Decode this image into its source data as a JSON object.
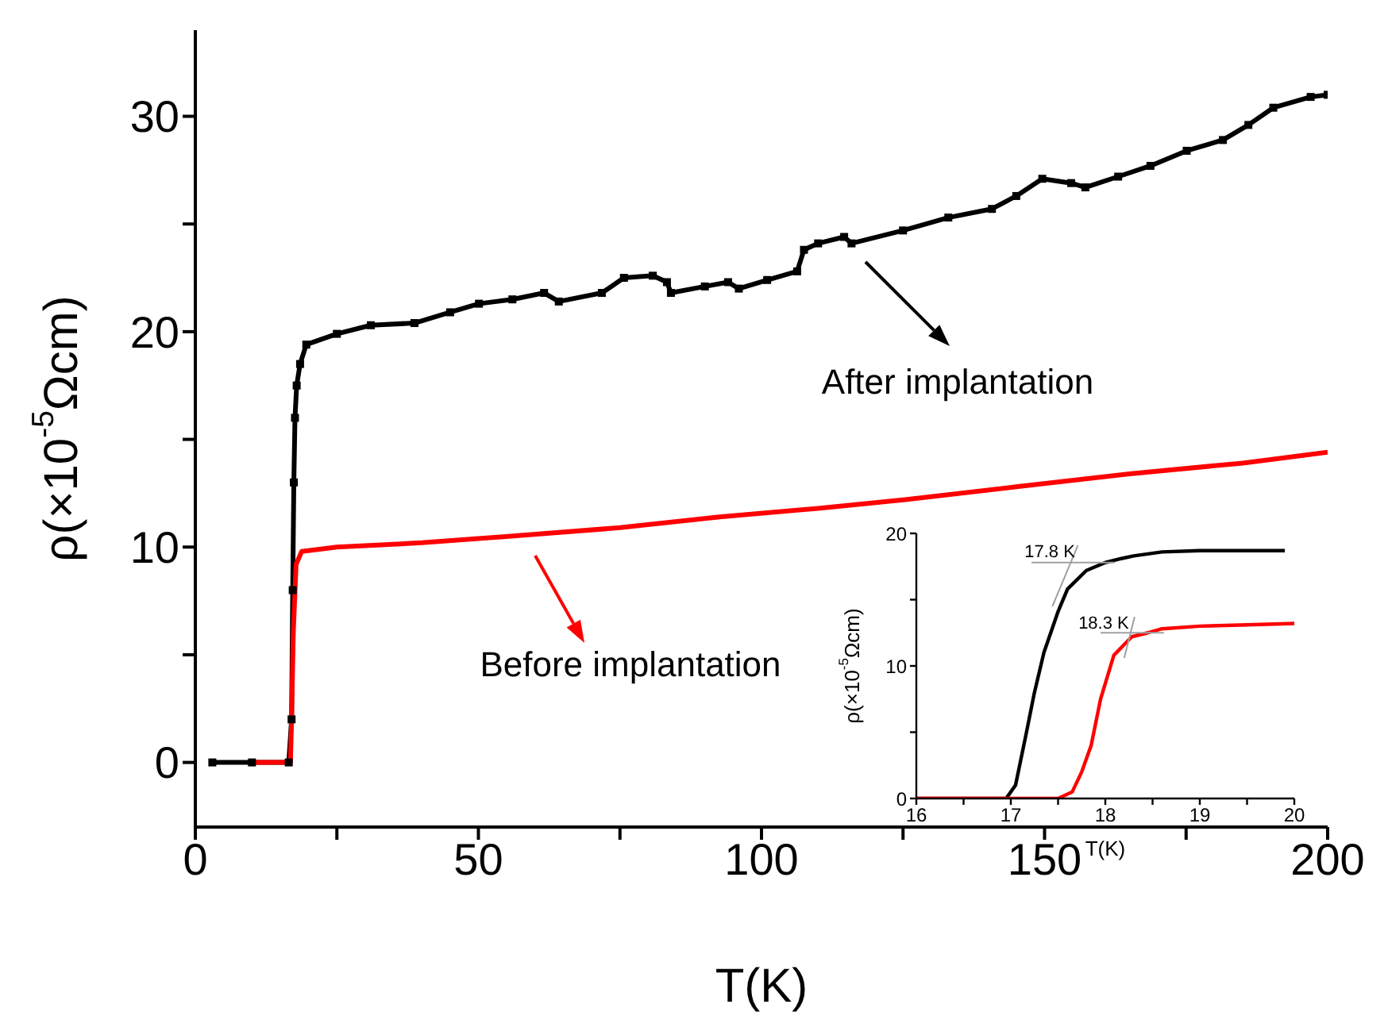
{
  "chart_data": [
    {
      "type": "line",
      "xlabel": "T(K)",
      "ylabel": "ρ(×10$^{-5}$Ωcm)",
      "xlim": [
        0,
        200
      ],
      "xticks": [
        0,
        {
          "value": 25,
          "label": null
        },
        50,
        {
          "value": 75,
          "label": null
        },
        100,
        {
          "value": 125,
          "label": null
        },
        150,
        {
          "value": 175,
          "label": null
        },
        200
      ],
      "ylim": [
        -3,
        34
      ],
      "yticks": [
        0,
        {
          "value": 5,
          "label": null
        },
        10,
        {
          "value": 15,
          "label": null
        },
        20,
        {
          "value": 25,
          "label": null
        },
        30
      ],
      "series": [
        {
          "color": "#000000",
          "marker": "square",
          "x": [
            3,
            10,
            16.5,
            17,
            17.2,
            17.4,
            17.6,
            17.9,
            18.5,
            19.6,
            25,
            31,
            38.7,
            45,
            50.1,
            56,
            61.6,
            64.2,
            71.8,
            75.7,
            80.8,
            83.3,
            84,
            90,
            94.1,
            96,
            101,
            106.3,
            107.5,
            110,
            114.6,
            115.9,
            125,
            133,
            140.7,
            145,
            149.6,
            154.7,
            157.2,
            163,
            168.7,
            175.1,
            181.5,
            186,
            190.4,
            197,
            200
          ],
          "values": [
            0,
            0,
            0,
            2,
            8,
            13,
            16,
            17.5,
            18.5,
            19.4,
            19.9,
            20.3,
            20.4,
            20.9,
            21.3,
            21.5,
            21.8,
            21.4,
            21.8,
            22.5,
            22.6,
            22.3,
            21.8,
            22.1,
            22.3,
            22.0,
            22.4,
            22.8,
            23.8,
            24.1,
            24.4,
            24.1,
            24.7,
            25.3,
            25.7,
            26.3,
            27.1,
            26.9,
            26.7,
            27.2,
            27.7,
            28.4,
            28.9,
            29.6,
            30.4,
            30.9,
            31.0
          ]
        },
        {
          "color": "#ff0000",
          "x": [
            10.4,
            13,
            16.8,
            17,
            17.3,
            17.8,
            18.8,
            25,
            40,
            55.3,
            75,
            92.6,
            110,
            125.4,
            145,
            165,
            185,
            200
          ],
          "values": [
            0,
            0,
            0,
            2,
            6,
            9.2,
            9.8,
            10,
            10.2,
            10.5,
            10.9,
            11.4,
            11.8,
            12.2,
            12.8,
            13.4,
            13.9,
            14.4
          ]
        }
      ],
      "annotations": [
        "After implantation",
        "Before implantation"
      ]
    },
    {
      "type": "line",
      "xlabel": "T(K)",
      "ylabel": "ρ(×10$^{-5}$Ωcm)",
      "xlim": [
        16,
        20
      ],
      "xticks": [
        16,
        {
          "value": 16.5,
          "label": null
        },
        17,
        {
          "value": 17.5,
          "label": null
        },
        18,
        {
          "value": 18.5,
          "label": null
        },
        19,
        {
          "value": 19.5,
          "label": null
        },
        20
      ],
      "ylim": [
        0,
        20
      ],
      "yticks": [
        0,
        {
          "value": 5,
          "label": null
        },
        10,
        {
          "value": 15,
          "label": null
        },
        20
      ],
      "series": [
        {
          "color": "#000000",
          "x": [
            16,
            16.95,
            17.05,
            17.16,
            17.25,
            17.35,
            17.5,
            17.6,
            17.8,
            18.0,
            18.17,
            18.3,
            18.6,
            19,
            19.9
          ],
          "values": [
            0,
            0,
            1,
            4.8,
            8,
            11,
            14.1,
            15.8,
            17.2,
            17.8,
            18.1,
            18.3,
            18.6,
            18.7,
            18.7
          ]
        },
        {
          "color": "#ff0000",
          "x": [
            16,
            17.5,
            17.65,
            17.75,
            17.85,
            17.95,
            18.09,
            18.28,
            18.45,
            18.6,
            19,
            19.5,
            20
          ],
          "values": [
            0,
            0,
            0.5,
            2,
            4,
            7.5,
            10.8,
            12.2,
            12.5,
            12.8,
            13,
            13.1,
            13.2
          ]
        },
        {
          "color": "#a0a0a0",
          "x": [
            17.22,
            18.1
          ],
          "values": [
            17.8,
            17.8
          ]
        },
        {
          "color": "#a0a0a0",
          "x": [
            17.44,
            17.71
          ],
          "values": [
            14.5,
            19.1
          ]
        },
        {
          "color": "#a0a0a0",
          "x": [
            17.95,
            18.62
          ],
          "values": [
            12.5,
            12.5
          ]
        },
        {
          "color": "#a0a0a0",
          "x": [
            18.2,
            18.31
          ],
          "values": [
            10.6,
            13.7
          ]
        }
      ],
      "annotations": [
        {
          "text": "17.8 K",
          "x": 17.68,
          "y": 18.2
        },
        {
          "text": "18.3 K",
          "x": 18.25,
          "y": 12.8
        }
      ]
    }
  ]
}
